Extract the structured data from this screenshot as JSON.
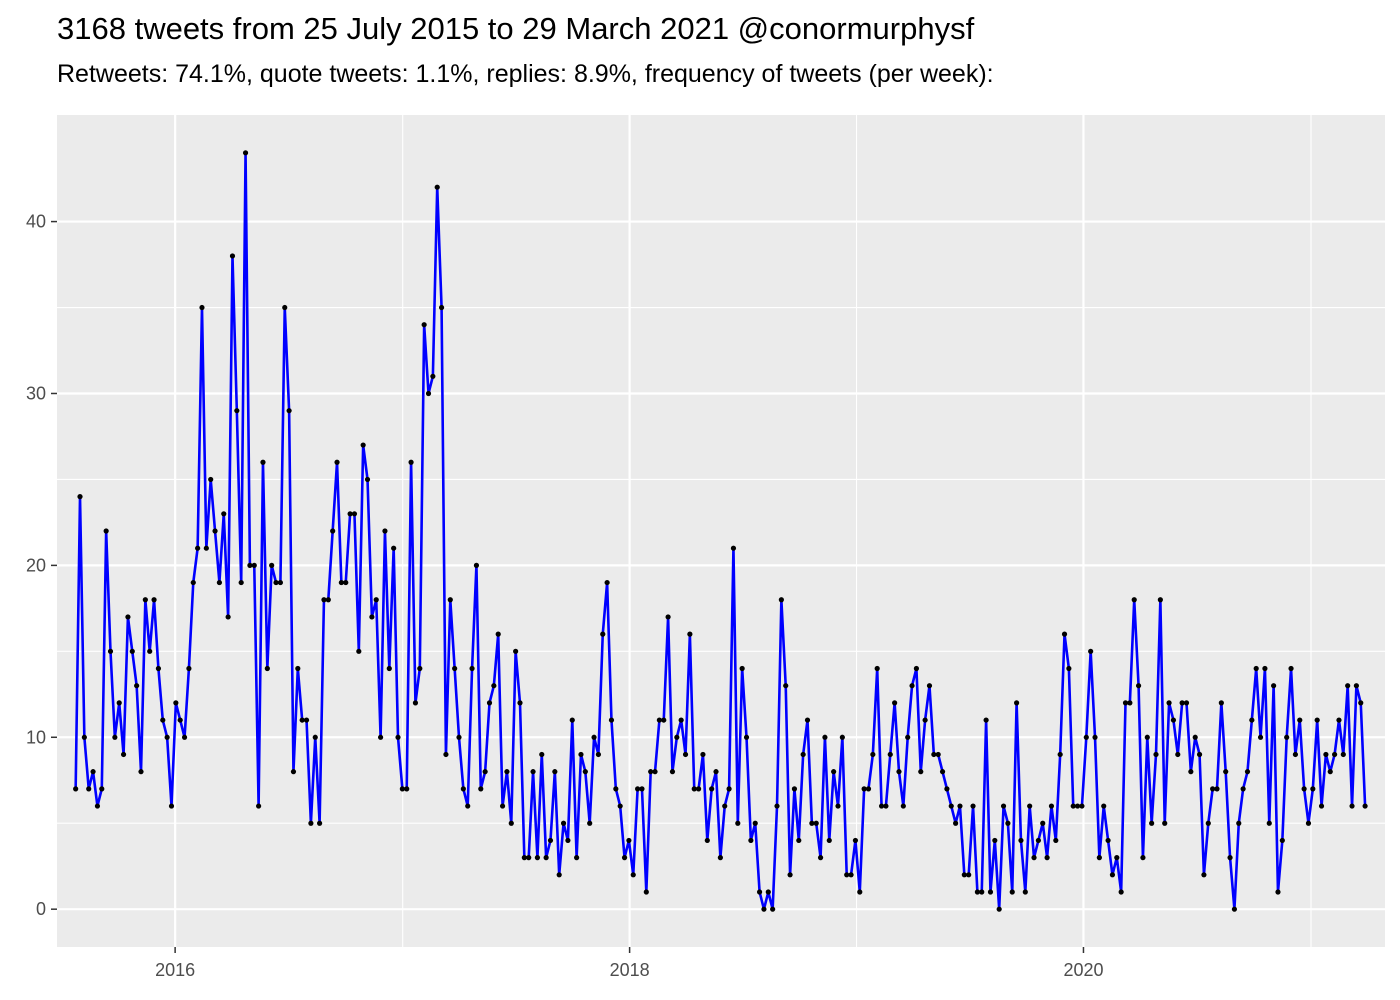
{
  "chart_data": {
    "type": "line",
    "title": "3168 tweets from 25 July 2015 to 29 March 2021 @conormurphysf",
    "subtitle": "Retweets: 74.1%, quote tweets: 1.1%, replies: 8.9%, frequency of tweets (per week):",
    "xlabel": "",
    "ylabel": "",
    "x_start": "2015-07-25",
    "x_end": "2021-03-29",
    "xlim": [
      "2015-06-25",
      "2021-04-30"
    ],
    "ylim": [
      -2.2,
      46.2
    ],
    "x_ticks": [
      "2016",
      "2018",
      "2020"
    ],
    "y_ticks": [
      0,
      10,
      20,
      30,
      40
    ],
    "grid": true,
    "legend": "none",
    "colors": {
      "line": "#0000ff",
      "point": "#000000",
      "panel": "#ebebeb",
      "grid": "#ffffff"
    },
    "series": [
      {
        "values": [
          7,
          24,
          10,
          7,
          8,
          6,
          7,
          22,
          15,
          10,
          12,
          9,
          17,
          15,
          13,
          8,
          18,
          15,
          18,
          14,
          11,
          10,
          6,
          12,
          11,
          10,
          14,
          19,
          21,
          35,
          21,
          25,
          22,
          19,
          23,
          17,
          38,
          29,
          19,
          44,
          20,
          20,
          6,
          26,
          14,
          20,
          19,
          19,
          35,
          29,
          8,
          14,
          11,
          11,
          5,
          10,
          5,
          18,
          18,
          22,
          26,
          19,
          19,
          23,
          23,
          15,
          27,
          25,
          17,
          18,
          10,
          22,
          14,
          21,
          10,
          7,
          7,
          26,
          12,
          14,
          34,
          30,
          31,
          42,
          35,
          9,
          18,
          14,
          10,
          7,
          6,
          14,
          20,
          7,
          8,
          12,
          13,
          16,
          6,
          8,
          5,
          15,
          12,
          3,
          3,
          8,
          3,
          9,
          3,
          4,
          8,
          2,
          5,
          4,
          11,
          3,
          9,
          8,
          5,
          10,
          9,
          16,
          19,
          11,
          7,
          6,
          3,
          4,
          2,
          7,
          7,
          1,
          8,
          8,
          11,
          11,
          17,
          8,
          10,
          11,
          9,
          16,
          7,
          7,
          9,
          4,
          7,
          8,
          3,
          6,
          7,
          21,
          5,
          14,
          10,
          4,
          5,
          1,
          0,
          1,
          0,
          6,
          18,
          13,
          2,
          7,
          4,
          9,
          11,
          5,
          5,
          3,
          10,
          4,
          8,
          6,
          10,
          2,
          2,
          4,
          1,
          7,
          7,
          9,
          14,
          6,
          6,
          9,
          12,
          8,
          6,
          10,
          13,
          14,
          8,
          11,
          13,
          9,
          9,
          8,
          7,
          6,
          5,
          6,
          2,
          2,
          6,
          1,
          1,
          11,
          1,
          4,
          0,
          6,
          5,
          1,
          12,
          4,
          1,
          6,
          3,
          4,
          5,
          3,
          6,
          4,
          9,
          16,
          14,
          6,
          6,
          6,
          10,
          15,
          10,
          3,
          6,
          4,
          2,
          3,
          1,
          12,
          12,
          18,
          13,
          3,
          10,
          5,
          9,
          18,
          5,
          12,
          11,
          9,
          12,
          12,
          8,
          10,
          9,
          2,
          5,
          7,
          7,
          12,
          8,
          3,
          0,
          5,
          7,
          8,
          11,
          14,
          10,
          14,
          5,
          13,
          1,
          4,
          10,
          14,
          9,
          11,
          7,
          5,
          7,
          11,
          6,
          9,
          8,
          9,
          11,
          9,
          13,
          6,
          13,
          12,
          6
        ]
      }
    ]
  }
}
